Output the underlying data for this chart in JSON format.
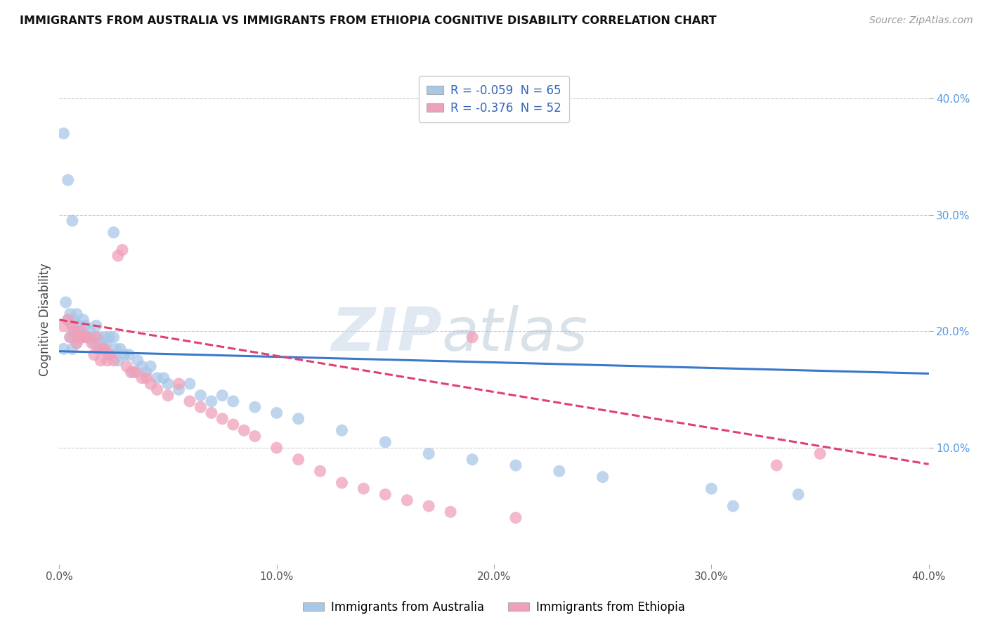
{
  "title": "IMMIGRANTS FROM AUSTRALIA VS IMMIGRANTS FROM ETHIOPIA COGNITIVE DISABILITY CORRELATION CHART",
  "source": "Source: ZipAtlas.com",
  "ylabel": "Cognitive Disability",
  "legend1_label": "R = -0.059  N = 65",
  "legend2_label": "R = -0.376  N = 52",
  "xlim": [
    0.0,
    0.4
  ],
  "ylim": [
    0.0,
    0.42
  ],
  "yticks": [
    0.1,
    0.2,
    0.3,
    0.4
  ],
  "ytick_labels": [
    "10.0%",
    "20.0%",
    "30.0%",
    "40.0%"
  ],
  "xticks": [
    0.0,
    0.1,
    0.2,
    0.3,
    0.4
  ],
  "xtick_labels": [
    "0.0%",
    "10.0%",
    "20.0%",
    "30.0%",
    "40.0%"
  ],
  "watermark_zip": "ZIP",
  "watermark_atlas": "atlas",
  "aus_color": "#a8c8e8",
  "eth_color": "#f0a0b8",
  "aus_line_color": "#3a78c9",
  "eth_line_color": "#e04070",
  "background_color": "#ffffff",
  "grid_color": "#cccccc",
  "aus_line_intercept": 0.183,
  "aus_line_slope": -0.048,
  "eth_line_intercept": 0.21,
  "eth_line_slope": -0.31,
  "aus_points_x": [
    0.002,
    0.003,
    0.004,
    0.005,
    0.005,
    0.006,
    0.006,
    0.007,
    0.007,
    0.008,
    0.008,
    0.009,
    0.01,
    0.01,
    0.011,
    0.012,
    0.013,
    0.014,
    0.015,
    0.016,
    0.017,
    0.018,
    0.019,
    0.02,
    0.021,
    0.022,
    0.023,
    0.024,
    0.025,
    0.026,
    0.027,
    0.028,
    0.03,
    0.032,
    0.034,
    0.036,
    0.038,
    0.04,
    0.042,
    0.045,
    0.048,
    0.05,
    0.055,
    0.06,
    0.065,
    0.07,
    0.075,
    0.08,
    0.09,
    0.1,
    0.11,
    0.13,
    0.15,
    0.17,
    0.19,
    0.21,
    0.23,
    0.25,
    0.3,
    0.34,
    0.002,
    0.004,
    0.006,
    0.025,
    0.31
  ],
  "aus_points_y": [
    0.185,
    0.225,
    0.21,
    0.195,
    0.215,
    0.2,
    0.185,
    0.195,
    0.21,
    0.19,
    0.215,
    0.205,
    0.2,
    0.195,
    0.21,
    0.205,
    0.195,
    0.2,
    0.195,
    0.19,
    0.205,
    0.195,
    0.19,
    0.185,
    0.195,
    0.19,
    0.195,
    0.18,
    0.195,
    0.185,
    0.175,
    0.185,
    0.18,
    0.18,
    0.165,
    0.175,
    0.17,
    0.165,
    0.17,
    0.16,
    0.16,
    0.155,
    0.15,
    0.155,
    0.145,
    0.14,
    0.145,
    0.14,
    0.135,
    0.13,
    0.125,
    0.115,
    0.105,
    0.095,
    0.09,
    0.085,
    0.08,
    0.075,
    0.065,
    0.06,
    0.37,
    0.33,
    0.295,
    0.285,
    0.05
  ],
  "eth_points_x": [
    0.002,
    0.004,
    0.005,
    0.006,
    0.007,
    0.008,
    0.009,
    0.01,
    0.011,
    0.012,
    0.013,
    0.015,
    0.016,
    0.017,
    0.018,
    0.019,
    0.02,
    0.021,
    0.022,
    0.023,
    0.025,
    0.027,
    0.029,
    0.031,
    0.033,
    0.035,
    0.038,
    0.04,
    0.042,
    0.045,
    0.05,
    0.055,
    0.06,
    0.065,
    0.07,
    0.075,
    0.08,
    0.085,
    0.09,
    0.1,
    0.11,
    0.12,
    0.13,
    0.14,
    0.15,
    0.16,
    0.17,
    0.18,
    0.19,
    0.21,
    0.33,
    0.35
  ],
  "eth_points_y": [
    0.205,
    0.21,
    0.195,
    0.205,
    0.2,
    0.19,
    0.195,
    0.2,
    0.195,
    0.195,
    0.195,
    0.19,
    0.18,
    0.195,
    0.185,
    0.175,
    0.185,
    0.185,
    0.175,
    0.18,
    0.175,
    0.265,
    0.27,
    0.17,
    0.165,
    0.165,
    0.16,
    0.16,
    0.155,
    0.15,
    0.145,
    0.155,
    0.14,
    0.135,
    0.13,
    0.125,
    0.12,
    0.115,
    0.11,
    0.1,
    0.09,
    0.08,
    0.07,
    0.065,
    0.06,
    0.055,
    0.05,
    0.045,
    0.195,
    0.04,
    0.085,
    0.095
  ]
}
